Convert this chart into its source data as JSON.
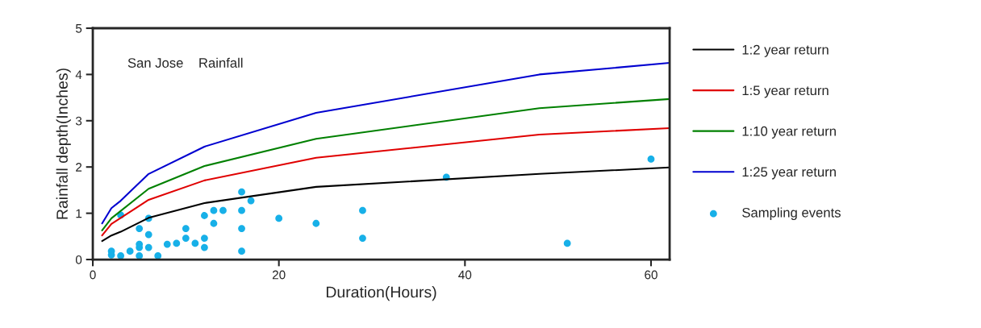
{
  "chart_data": {
    "type": "line",
    "xlabel": "Duration(Hours)",
    "ylabel": "Rainfall depth(Inches)",
    "annotations": [
      "San Jose    Rainfall"
    ],
    "xlim": [
      0,
      62
    ],
    "ylim": [
      0,
      5
    ],
    "xticks": [
      0,
      20,
      40,
      60
    ],
    "yticks": [
      0,
      1,
      2,
      3,
      4,
      5
    ],
    "grid": false,
    "legend": "right",
    "series": [
      {
        "name": "1:2 year return",
        "color": "#000000",
        "marker": "none",
        "x": [
          1,
          2,
          3,
          6,
          12,
          24,
          48,
          62
        ],
        "values": [
          0.4,
          0.52,
          0.6,
          0.9,
          1.22,
          1.57,
          1.85,
          1.99
        ]
      },
      {
        "name": "1:5 year return",
        "color": "#e00000",
        "marker": "none",
        "x": [
          1,
          2,
          6,
          12,
          24,
          48,
          62
        ],
        "values": [
          0.52,
          0.77,
          1.29,
          1.71,
          2.2,
          2.7,
          2.84
        ]
      },
      {
        "name": "1:10 year return",
        "color": "#008000",
        "marker": "none",
        "x": [
          1,
          2,
          6,
          12,
          24,
          48,
          62
        ],
        "values": [
          0.63,
          0.89,
          1.53,
          2.02,
          2.61,
          3.27,
          3.47
        ]
      },
      {
        "name": "1:25 year return",
        "color": "#0000d0",
        "marker": "none",
        "x": [
          1,
          2,
          3,
          6,
          12,
          24,
          48,
          62
        ],
        "values": [
          0.78,
          1.11,
          1.27,
          1.85,
          2.44,
          3.17,
          4.0,
          4.25
        ]
      },
      {
        "name": "Sampling events",
        "color": "#17b0e8",
        "type": "scatter",
        "marker": "circle",
        "x": [
          2,
          2,
          3,
          4,
          3,
          5,
          5,
          5,
          5,
          6,
          6,
          6,
          7,
          8,
          9,
          10,
          10,
          11,
          12,
          12,
          12,
          13,
          13,
          14,
          16,
          16,
          16,
          16,
          17,
          20,
          24,
          29,
          29,
          38,
          51,
          60
        ],
        "values": [
          0.18,
          0.1,
          0.08,
          0.18,
          0.96,
          0.67,
          0.33,
          0.26,
          0.08,
          0.89,
          0.54,
          0.26,
          0.08,
          0.33,
          0.35,
          0.67,
          0.46,
          0.35,
          0.95,
          0.46,
          0.26,
          1.06,
          0.78,
          1.06,
          1.46,
          1.06,
          0.67,
          0.18,
          1.27,
          0.89,
          0.78,
          1.06,
          0.46,
          1.78,
          0.35,
          2.17
        ]
      }
    ]
  }
}
